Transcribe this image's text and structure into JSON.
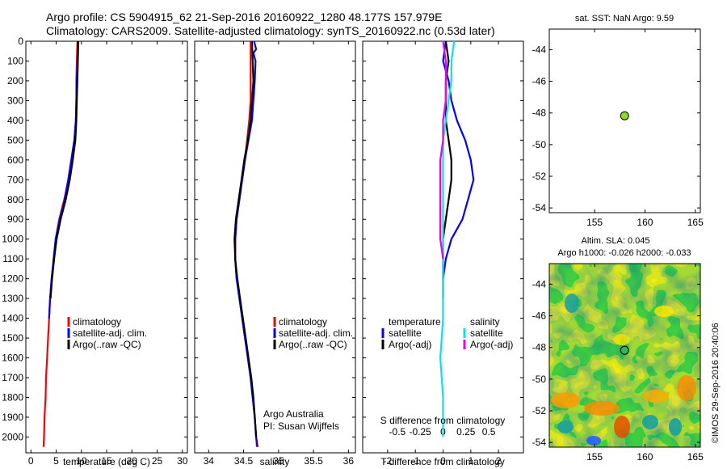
{
  "header": {
    "line1": "Argo profile: CS 5904915_62 21-Sep-2016 20160922_1280 48.177S 157.979E",
    "line2": "Climatology: CARS2009. Satellite-adjusted climatology: synTS_20160922.nc (0.53d later)"
  },
  "panels": {
    "temperature": {
      "xlabel": "temperature (deg C)",
      "legend": [
        "climatology",
        "satellite-adj. clim.",
        "Argo(..raw -QC)"
      ]
    },
    "salinity": {
      "xlabel": "salinity",
      "legend": [
        "climatology",
        "satellite-adj. clim.",
        "Argo(..raw -QC)"
      ],
      "note1": "Argo Australia",
      "note2": "PI: Susan Wijffels"
    },
    "difference": {
      "xlabel": "T difference from climatology",
      "xlabel_top": "S difference from climatology",
      "legend_temp_title": "temperature",
      "legend_sal_title": "salinity",
      "legend_items": [
        "satellite",
        "Argo(-adj)",
        "satellite",
        "Argo(-adj)"
      ]
    },
    "map_sst": {
      "title": "sat. SST: NaN Argo: 9.59"
    },
    "map_sla": {
      "title1": "Altim. SLA: 0.045",
      "title2": "Argo h1000: -0.026 h2000: -0.033",
      "credit": "©IMOS 29-Sep-2016 20:40:06"
    }
  },
  "colors": {
    "climatology": "#ff0000",
    "satellite": "#0000ff",
    "argo": "#000000",
    "sal_satellite": "#00e5ee",
    "sal_argo": "#ee00ee",
    "marker": "#88dd22"
  },
  "chart_data": [
    {
      "type": "line",
      "id": "temperature",
      "xlabel": "temperature (deg C)",
      "ylabel": "",
      "xlim": [
        -1,
        31
      ],
      "ylim": [
        2080,
        0
      ],
      "xticks": [
        0,
        5,
        10,
        15,
        20,
        25,
        30
      ],
      "yticks": [
        0,
        100,
        200,
        300,
        400,
        500,
        600,
        700,
        800,
        900,
        1000,
        1100,
        1200,
        1300,
        1400,
        1500,
        1600,
        1700,
        1800,
        1900,
        2000
      ],
      "series": [
        {
          "name": "climatology",
          "color": "#ff0000",
          "points": [
            [
              9.2,
              0
            ],
            [
              9.1,
              100
            ],
            [
              9.0,
              200
            ],
            [
              9.0,
              300
            ],
            [
              8.9,
              400
            ],
            [
              8.6,
              500
            ],
            [
              8.0,
              600
            ],
            [
              7.4,
              700
            ],
            [
              6.6,
              800
            ],
            [
              5.6,
              900
            ],
            [
              4.9,
              1000
            ],
            [
              4.5,
              1100
            ],
            [
              4.1,
              1200
            ],
            [
              3.8,
              1300
            ],
            [
              3.6,
              1400
            ],
            [
              3.4,
              1500
            ],
            [
              3.2,
              1600
            ],
            [
              3.0,
              1700
            ],
            [
              2.9,
              1800
            ],
            [
              2.7,
              1900
            ],
            [
              2.6,
              2000
            ],
            [
              2.5,
              2050
            ]
          ]
        },
        {
          "name": "satellite-adj. clim.",
          "color": "#0000ff",
          "points": [
            [
              9.3,
              0
            ],
            [
              9.2,
              100
            ],
            [
              9.1,
              200
            ],
            [
              9.0,
              300
            ],
            [
              8.9,
              400
            ],
            [
              8.6,
              500
            ],
            [
              8.0,
              600
            ],
            [
              7.4,
              700
            ],
            [
              6.7,
              800
            ],
            [
              5.7,
              900
            ],
            [
              4.9,
              1000
            ],
            [
              4.5,
              1100
            ],
            [
              4.1,
              1200
            ],
            [
              3.8,
              1300
            ],
            [
              3.6,
              1400
            ]
          ]
        },
        {
          "name": "Argo(..raw -QC)",
          "color": "#000000",
          "points": [
            [
              9.4,
              0
            ],
            [
              9.3,
              100
            ],
            [
              9.2,
              200
            ],
            [
              9.1,
              300
            ],
            [
              9.0,
              400
            ],
            [
              8.8,
              500
            ],
            [
              8.3,
              600
            ],
            [
              7.7,
              700
            ],
            [
              6.9,
              800
            ],
            [
              5.9,
              900
            ],
            [
              5.1,
              1000
            ],
            [
              4.6,
              1100
            ],
            [
              4.2,
              1200
            ],
            [
              3.9,
              1300
            ]
          ]
        }
      ]
    },
    {
      "type": "line",
      "id": "salinity",
      "xlabel": "salinity",
      "ylabel": "",
      "xlim": [
        33.8,
        36.1
      ],
      "ylim": [
        2080,
        0
      ],
      "xticks": [
        34,
        34.5,
        35,
        35.5,
        36
      ],
      "series": [
        {
          "name": "climatology",
          "color": "#ff0000",
          "points": [
            [
              34.6,
              0
            ],
            [
              34.6,
              100
            ],
            [
              34.6,
              200
            ],
            [
              34.6,
              300
            ],
            [
              34.58,
              400
            ],
            [
              34.55,
              500
            ],
            [
              34.52,
              600
            ],
            [
              34.48,
              700
            ],
            [
              34.44,
              800
            ],
            [
              34.4,
              900
            ],
            [
              34.38,
              1000
            ],
            [
              34.38,
              1100
            ],
            [
              34.4,
              1200
            ],
            [
              34.44,
              1300
            ],
            [
              34.48,
              1400
            ],
            [
              34.52,
              1500
            ],
            [
              34.56,
              1600
            ],
            [
              34.6,
              1700
            ],
            [
              34.63,
              1800
            ],
            [
              34.66,
              1900
            ],
            [
              34.68,
              2000
            ],
            [
              34.69,
              2050
            ]
          ]
        },
        {
          "name": "satellite-adj. clim.",
          "color": "#0000ff",
          "points": [
            [
              34.65,
              0
            ],
            [
              34.68,
              40
            ],
            [
              34.64,
              60
            ],
            [
              34.67,
              100
            ],
            [
              34.66,
              200
            ],
            [
              34.64,
              300
            ],
            [
              34.62,
              400
            ],
            [
              34.57,
              500
            ],
            [
              34.52,
              600
            ],
            [
              34.48,
              700
            ],
            [
              34.44,
              800
            ],
            [
              34.4,
              900
            ],
            [
              34.38,
              1000
            ],
            [
              34.38,
              1100
            ],
            [
              34.4,
              1200
            ],
            [
              34.44,
              1300
            ],
            [
              34.48,
              1400
            ],
            [
              34.52,
              1500
            ],
            [
              34.56,
              1600
            ],
            [
              34.6,
              1700
            ],
            [
              34.63,
              1800
            ],
            [
              34.66,
              1900
            ],
            [
              34.68,
              2000
            ],
            [
              34.7,
              2050
            ]
          ]
        },
        {
          "name": "Argo(..raw -QC)",
          "color": "#000000",
          "points": [
            [
              34.62,
              0
            ],
            [
              34.63,
              100
            ],
            [
              34.64,
              200
            ],
            [
              34.62,
              300
            ],
            [
              34.6,
              400
            ],
            [
              34.56,
              500
            ],
            [
              34.51,
              600
            ],
            [
              34.47,
              700
            ],
            [
              34.43,
              800
            ],
            [
              34.39,
              900
            ],
            [
              34.37,
              1000
            ],
            [
              34.38,
              1100
            ],
            [
              34.41,
              1200
            ],
            [
              34.45,
              1300
            ],
            [
              34.49,
              1400
            ],
            [
              34.53,
              1500
            ],
            [
              34.57,
              1600
            ],
            [
              34.61,
              1700
            ],
            [
              34.64,
              1800
            ],
            [
              34.66,
              1900
            ],
            [
              34.68,
              2000
            ]
          ]
        }
      ]
    },
    {
      "type": "line",
      "id": "difference",
      "xlabel": "T difference from climatology",
      "xlabel_top": "S difference from climatology",
      "xlim": [
        -2.9,
        2.9
      ],
      "ylim": [
        2080,
        0
      ],
      "xticks": [
        -2,
        -1,
        0,
        1,
        2
      ],
      "xticks_top": [
        "-0.5",
        "-0.25",
        "0",
        "0.25",
        "0.5"
      ],
      "series": [
        {
          "name": "satellite",
          "group": "temperature",
          "color": "#0000ff",
          "points": [
            [
              0.1,
              0
            ],
            [
              0.0,
              100
            ],
            [
              0.2,
              200
            ],
            [
              0.3,
              300
            ],
            [
              0.5,
              400
            ],
            [
              0.8,
              500
            ],
            [
              1.0,
              600
            ],
            [
              1.1,
              700
            ],
            [
              0.9,
              800
            ],
            [
              0.7,
              900
            ],
            [
              0.3,
              1000
            ],
            [
              0.1,
              1100
            ],
            [
              0.0,
              1200
            ],
            [
              0.0,
              1300
            ]
          ]
        },
        {
          "name": "Argo(-adj)",
          "group": "temperature",
          "color": "#000000",
          "points": [
            [
              0.1,
              0
            ],
            [
              0.2,
              100
            ],
            [
              0.1,
              200
            ],
            [
              0.1,
              300
            ],
            [
              0.1,
              400
            ],
            [
              0.2,
              500
            ],
            [
              0.3,
              600
            ],
            [
              0.3,
              700
            ],
            [
              0.2,
              800
            ],
            [
              0.1,
              900
            ],
            [
              0.0,
              1000
            ],
            [
              0.0,
              1100
            ],
            [
              0.0,
              1200
            ]
          ]
        },
        {
          "name": "satellite",
          "group": "salinity",
          "color": "#00e5ee",
          "points": [
            [
              0.4,
              0
            ],
            [
              0.3,
              100
            ],
            [
              0.3,
              200
            ],
            [
              0.2,
              300
            ],
            [
              0.1,
              400
            ],
            [
              0.0,
              500
            ],
            [
              0.0,
              600
            ],
            [
              0.0,
              700
            ],
            [
              0.0,
              800
            ],
            [
              0.0,
              1000
            ],
            [
              0.0,
              1200
            ],
            [
              0.0,
              1400
            ],
            [
              -0.1,
              1600
            ],
            [
              0.0,
              1800
            ],
            [
              0.0,
              2000
            ]
          ]
        },
        {
          "name": "Argo(-adj)",
          "group": "salinity",
          "color": "#ee00ee",
          "points": [
            [
              0.0,
              0
            ],
            [
              0.1,
              100
            ],
            [
              0.1,
              200
            ],
            [
              0.1,
              300
            ],
            [
              0.0,
              400
            ],
            [
              0.0,
              500
            ],
            [
              -0.1,
              600
            ],
            [
              -0.1,
              700
            ],
            [
              -0.1,
              800
            ],
            [
              -0.1,
              900
            ],
            [
              -0.1,
              1000
            ],
            [
              0.0,
              1100
            ]
          ]
        }
      ]
    },
    {
      "type": "scatter",
      "id": "map_sst",
      "title": "sat. SST: NaN Argo: 9.59",
      "xlim": [
        150.5,
        165.5
      ],
      "ylim": [
        -54.3,
        -42.7
      ],
      "xticks": [
        155,
        160,
        165
      ],
      "yticks": [
        -44,
        -46,
        -48,
        -50,
        -52,
        -54
      ],
      "points": [
        [
          157.979,
          -48.177
        ]
      ]
    },
    {
      "type": "heatmap",
      "id": "map_sla",
      "title": "Altim. SLA: 0.045",
      "subtitle": "Argo h1000: -0.026 h2000: -0.033",
      "xlim": [
        150.5,
        165.5
      ],
      "ylim": [
        -54.3,
        -42.7
      ],
      "xticks": [
        155,
        160,
        165
      ],
      "yticks": [
        -44,
        -46,
        -48,
        -50,
        -52,
        -54
      ],
      "points": [
        [
          157.979,
          -48.177
        ]
      ]
    }
  ]
}
